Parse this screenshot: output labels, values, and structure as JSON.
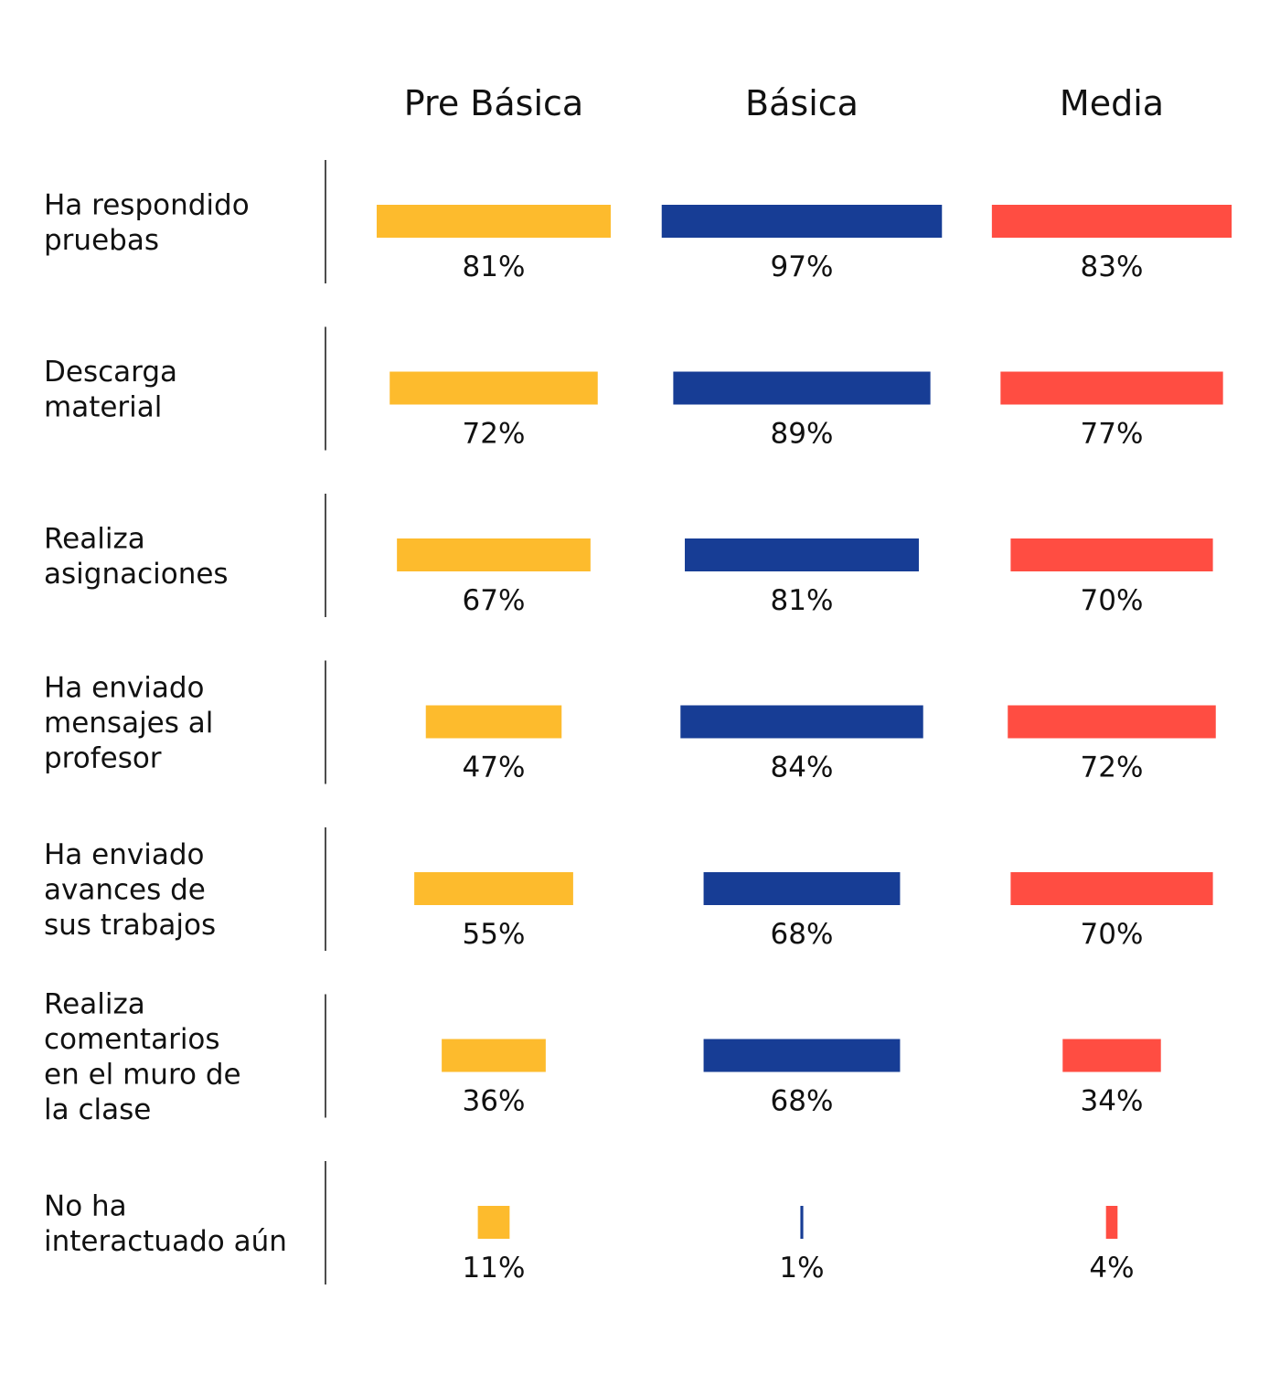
{
  "chart_data": {
    "type": "bar",
    "orientation": "horizontal",
    "layout": "small-multiples",
    "categories": [
      [
        "Ha respondido",
        "pruebas"
      ],
      [
        "Descarga",
        "material"
      ],
      [
        "Realiza",
        "asignaciones"
      ],
      [
        "Ha enviado",
        "mensajes al",
        "profesor"
      ],
      [
        "Ha enviado",
        "avances de",
        "sus trabajos"
      ],
      [
        "Realiza",
        "comentarios",
        "en el muro de",
        "la clase"
      ],
      [
        "No ha",
        "interactuado aún"
      ]
    ],
    "series": [
      {
        "name": "Pre Básica",
        "color": "#FDBB2D",
        "values": [
          81,
          72,
          67,
          47,
          55,
          36,
          11
        ]
      },
      {
        "name": "Básica",
        "color": "#173D95",
        "values": [
          97,
          89,
          81,
          84,
          68,
          68,
          1
        ]
      },
      {
        "name": "Media",
        "color": "#FF4D42",
        "values": [
          83,
          77,
          70,
          72,
          70,
          34,
          4
        ]
      }
    ],
    "value_labels": [
      [
        "81%",
        "72%",
        "67%",
        "47%",
        "55%",
        "36%",
        "11%"
      ],
      [
        "97%",
        "89%",
        "81%",
        "84%",
        "68%",
        "68%",
        "1%"
      ],
      [
        "83%",
        "77%",
        "70%",
        "72%",
        "70%",
        "34%",
        "4%"
      ]
    ],
    "unit": "%",
    "xlim": [
      0,
      100
    ],
    "bar_alignment": "centered",
    "grid": false,
    "legend": "none"
  }
}
